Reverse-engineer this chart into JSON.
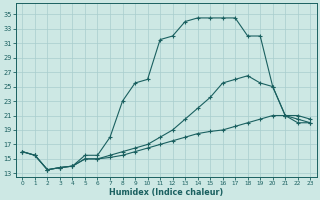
{
  "xlabel": "Humidex (Indice chaleur)",
  "xlim": [
    -0.5,
    23.5
  ],
  "ylim": [
    12.5,
    36.5
  ],
  "yticks": [
    13,
    15,
    17,
    19,
    21,
    23,
    25,
    27,
    29,
    31,
    33,
    35
  ],
  "xticks": [
    0,
    1,
    2,
    3,
    4,
    5,
    6,
    7,
    8,
    9,
    10,
    11,
    12,
    13,
    14,
    15,
    16,
    17,
    18,
    19,
    20,
    21,
    22,
    23
  ],
  "bg_color": "#cde8e4",
  "grid_color": "#a8cece",
  "line_color": "#1a6060",
  "line1_x": [
    0,
    1,
    2,
    3,
    4,
    5,
    6,
    7,
    8,
    9,
    10,
    11,
    12,
    13,
    14,
    15,
    16,
    17,
    18,
    19,
    20,
    21,
    22,
    23
  ],
  "line1_y": [
    16.0,
    15.5,
    13.5,
    13.8,
    14.0,
    15.5,
    15.5,
    18.0,
    23.0,
    25.5,
    26.0,
    31.5,
    32.0,
    34.0,
    34.5,
    34.5,
    34.5,
    34.5,
    32.0,
    32.0,
    25.0,
    21.0,
    20.0,
    20.0
  ],
  "line2_x": [
    0,
    1,
    2,
    3,
    4,
    5,
    6,
    7,
    8,
    9,
    10,
    11,
    12,
    13,
    14,
    15,
    16,
    17,
    18,
    19,
    20,
    21,
    22,
    23
  ],
  "line2_y": [
    16.0,
    15.5,
    13.5,
    13.8,
    14.0,
    15.0,
    15.0,
    15.5,
    16.0,
    16.5,
    17.0,
    18.0,
    19.0,
    20.5,
    22.0,
    23.5,
    25.5,
    26.0,
    26.5,
    25.5,
    25.0,
    21.0,
    21.0,
    20.5
  ],
  "line3_x": [
    0,
    1,
    2,
    3,
    4,
    5,
    6,
    7,
    8,
    9,
    10,
    11,
    12,
    13,
    14,
    15,
    16,
    17,
    18,
    19,
    20,
    21,
    22,
    23
  ],
  "line3_y": [
    16.0,
    15.5,
    13.5,
    13.8,
    14.0,
    15.0,
    15.0,
    15.2,
    15.5,
    16.0,
    16.5,
    17.0,
    17.5,
    18.0,
    18.5,
    18.8,
    19.0,
    19.5,
    20.0,
    20.5,
    21.0,
    21.0,
    20.5,
    20.0
  ]
}
